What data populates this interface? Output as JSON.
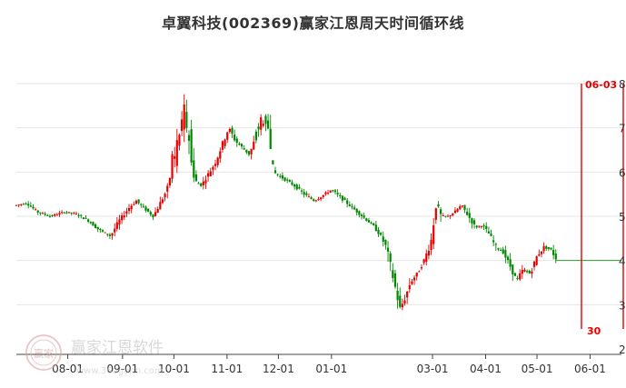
{
  "chart_data": {
    "type": "candlestick",
    "title": "卓翼科技(002369)赢家江恩周天时间循环线",
    "xlabel": "",
    "ylabel": "",
    "ylim": [
      2,
      8
    ],
    "yticks": [
      "2",
      "3",
      "4",
      "5",
      "6",
      "7",
      "8"
    ],
    "xticks": [
      {
        "label": "08-01",
        "day": 30
      },
      {
        "label": "09-01",
        "day": 62
      },
      {
        "label": "10-01",
        "day": 92
      },
      {
        "label": "11-01",
        "day": 123
      },
      {
        "label": "12-01",
        "day": 153
      },
      {
        "label": "01-01",
        "day": 184
      },
      {
        "label": "03-01",
        "day": 243
      },
      {
        "label": "04-01",
        "day": 274
      },
      {
        "label": "05-01",
        "day": 304
      },
      {
        "label": "06-01",
        "day": 335
      }
    ],
    "grid": true,
    "price_anchors": [
      [
        0,
        5.25
      ],
      [
        6,
        5.3
      ],
      [
        12,
        5.1
      ],
      [
        20,
        5.0
      ],
      [
        28,
        5.1
      ],
      [
        35,
        5.05
      ],
      [
        42,
        4.9
      ],
      [
        48,
        4.7
      ],
      [
        55,
        4.55
      ],
      [
        60,
        4.9
      ],
      [
        66,
        5.2
      ],
      [
        70,
        5.35
      ],
      [
        74,
        5.2
      ],
      [
        80,
        5.0
      ],
      [
        84,
        5.3
      ],
      [
        88,
        5.6
      ],
      [
        92,
        6.3
      ],
      [
        95,
        6.8
      ],
      [
        98,
        7.4
      ],
      [
        101,
        6.8
      ],
      [
        104,
        5.8
      ],
      [
        108,
        5.7
      ],
      [
        112,
        5.95
      ],
      [
        116,
        6.2
      ],
      [
        120,
        6.6
      ],
      [
        124,
        7.0
      ],
      [
        128,
        6.7
      ],
      [
        132,
        6.55
      ],
      [
        136,
        6.4
      ],
      [
        140,
        6.8
      ],
      [
        144,
        7.3
      ],
      [
        147,
        7.0
      ],
      [
        150,
        6.0
      ],
      [
        156,
        5.85
      ],
      [
        162,
        5.7
      ],
      [
        168,
        5.5
      ],
      [
        174,
        5.35
      ],
      [
        180,
        5.5
      ],
      [
        184,
        5.6
      ],
      [
        190,
        5.4
      ],
      [
        196,
        5.2
      ],
      [
        202,
        5.0
      ],
      [
        208,
        4.8
      ],
      [
        212,
        4.6
      ],
      [
        216,
        4.3
      ],
      [
        220,
        3.6
      ],
      [
        224,
        2.9
      ],
      [
        227,
        3.15
      ],
      [
        230,
        3.5
      ],
      [
        234,
        3.7
      ],
      [
        238,
        4.0
      ],
      [
        242,
        4.4
      ],
      [
        245,
        5.3
      ],
      [
        248,
        5.0
      ],
      [
        252,
        5.0
      ],
      [
        256,
        5.1
      ],
      [
        260,
        5.25
      ],
      [
        264,
        5.0
      ],
      [
        268,
        4.75
      ],
      [
        272,
        4.8
      ],
      [
        276,
        4.6
      ],
      [
        280,
        4.3
      ],
      [
        284,
        4.2
      ],
      [
        288,
        3.9
      ],
      [
        292,
        3.55
      ],
      [
        296,
        3.8
      ],
      [
        300,
        3.7
      ],
      [
        304,
        4.1
      ],
      [
        308,
        4.3
      ],
      [
        312,
        4.25
      ],
      [
        315,
        4.05
      ]
    ],
    "last_candle_day": 315,
    "flat_line": {
      "value": 4.0,
      "from_day": 315,
      "to_day": 347
    },
    "cycle_lines": [
      {
        "label": "06-03",
        "day": 337
      },
      {
        "label": "30",
        "day": 350
      }
    ],
    "up_color": "#e60000",
    "down_color": "#008800",
    "cycle_color": "#e60000",
    "flat_color": "#2a9d2a"
  },
  "watermark": {
    "brand": "赢家江恩软件",
    "url": "www.360gann.com",
    "seal": "赢家"
  }
}
